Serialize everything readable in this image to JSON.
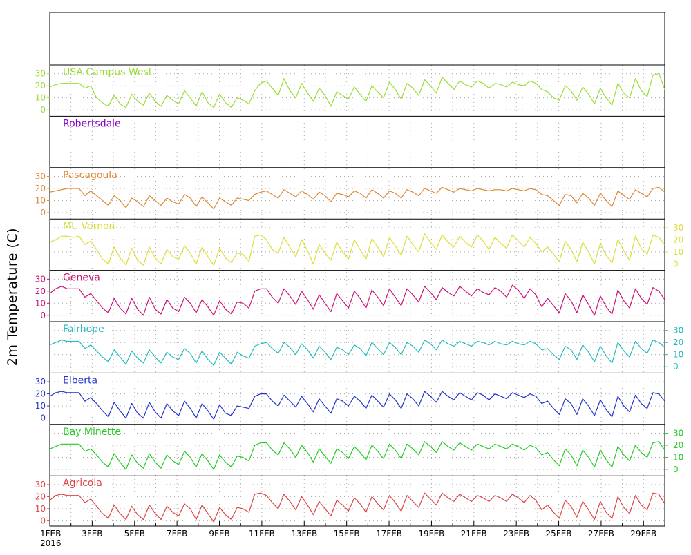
{
  "chart_data": {
    "type": "line",
    "ylabel": "2m Temperature (C)",
    "xaxis": {
      "start": "2016-02-01",
      "end": "2016-02-29",
      "year_label": "2016",
      "ticks": [
        "1FEB",
        "3FEB",
        "5FEB",
        "7FEB",
        "9FEB",
        "11FEB",
        "13FEB",
        "15FEB",
        "17FEB",
        "19FEB",
        "21FEB",
        "23FEB",
        "25FEB",
        "27FEB",
        "29FEB"
      ]
    },
    "ylim": [
      -3,
      35
    ],
    "yticks": [
      0,
      10,
      20,
      30
    ],
    "grid": true,
    "panels": [
      {
        "name": "USA Campus West",
        "color": "#99dd33",
        "axis_side": "left",
        "values": [
          19,
          21,
          22,
          22,
          22,
          22,
          18,
          20,
          10,
          6,
          3,
          12,
          5,
          2,
          13,
          7,
          4,
          14,
          7,
          3,
          12,
          8,
          5,
          16,
          10,
          3,
          15,
          6,
          2,
          13,
          6,
          2,
          10,
          8,
          5,
          16,
          22,
          24,
          18,
          12,
          26,
          16,
          10,
          22,
          14,
          7,
          18,
          12,
          3,
          15,
          12,
          9,
          19,
          13,
          7,
          20,
          15,
          10,
          23,
          17,
          9,
          22,
          18,
          12,
          25,
          20,
          14,
          27,
          22,
          17,
          24,
          21,
          19,
          24,
          22,
          18,
          22,
          21,
          19,
          23,
          21,
          20,
          24,
          22,
          17,
          15,
          10,
          8,
          20,
          16,
          8,
          19,
          13,
          5,
          18,
          10,
          4,
          22,
          14,
          10,
          26,
          16,
          11,
          29,
          30,
          17
        ]
      },
      {
        "name": "Robertsdale",
        "color": "#8800cc",
        "axis_side": "left",
        "values": []
      },
      {
        "name": "Pascagoula",
        "color": "#dd8833",
        "axis_side": "left",
        "values": [
          17,
          18,
          19,
          20,
          20,
          20,
          14,
          18,
          14,
          10,
          6,
          14,
          10,
          4,
          12,
          9,
          5,
          14,
          10,
          6,
          12,
          9,
          7,
          15,
          12,
          5,
          13,
          8,
          3,
          12,
          9,
          6,
          12,
          11,
          10,
          15,
          17,
          18,
          15,
          12,
          19,
          16,
          13,
          18,
          15,
          11,
          17,
          14,
          9,
          16,
          15,
          13,
          18,
          16,
          12,
          19,
          16,
          12,
          18,
          16,
          12,
          19,
          17,
          14,
          20,
          18,
          16,
          21,
          19,
          17,
          20,
          19,
          18,
          20,
          19,
          18,
          19,
          19,
          18,
          20,
          19,
          18,
          20,
          19,
          15,
          14,
          10,
          6,
          15,
          14,
          8,
          16,
          12,
          6,
          16,
          10,
          5,
          18,
          14,
          11,
          19,
          16,
          13,
          20,
          21,
          17
        ]
      },
      {
        "name": "Mt. Vernon",
        "color": "#dddd33",
        "axis_side": "right",
        "values": [
          18,
          20,
          23,
          23,
          22,
          23,
          16,
          19,
          12,
          4,
          0,
          14,
          5,
          -1,
          13,
          3,
          -1,
          14,
          5,
          0,
          12,
          6,
          4,
          15,
          9,
          0,
          14,
          6,
          -1,
          13,
          5,
          1,
          9,
          8,
          2,
          23,
          24,
          20,
          12,
          9,
          22,
          14,
          6,
          20,
          11,
          0,
          16,
          9,
          3,
          18,
          10,
          4,
          20,
          12,
          4,
          21,
          14,
          6,
          22,
          15,
          7,
          23,
          16,
          10,
          25,
          18,
          12,
          24,
          18,
          14,
          23,
          18,
          14,
          24,
          19,
          12,
          22,
          17,
          13,
          24,
          19,
          14,
          22,
          17,
          10,
          14,
          8,
          2,
          19,
          12,
          2,
          18,
          10,
          0,
          17,
          7,
          1,
          20,
          11,
          3,
          23,
          13,
          8,
          24,
          22,
          16
        ]
      },
      {
        "name": "Geneva",
        "color": "#cc1177",
        "axis_side": "left",
        "values": [
          18,
          22,
          24,
          22,
          22,
          22,
          15,
          18,
          12,
          6,
          2,
          14,
          6,
          1,
          14,
          5,
          0,
          15,
          5,
          1,
          13,
          6,
          3,
          15,
          10,
          2,
          13,
          7,
          0,
          12,
          5,
          1,
          11,
          10,
          6,
          20,
          22,
          22,
          15,
          10,
          22,
          16,
          9,
          20,
          13,
          5,
          17,
          10,
          3,
          18,
          12,
          6,
          20,
          14,
          6,
          21,
          15,
          8,
          22,
          15,
          8,
          22,
          17,
          11,
          24,
          19,
          13,
          23,
          19,
          16,
          24,
          20,
          16,
          22,
          19,
          17,
          23,
          20,
          15,
          25,
          21,
          14,
          22,
          17,
          7,
          14,
          8,
          2,
          18,
          12,
          2,
          17,
          9,
          0,
          16,
          7,
          1,
          21,
          12,
          6,
          22,
          14,
          9,
          23,
          20,
          13
        ]
      },
      {
        "name": "Fairhope",
        "color": "#22bbbb",
        "axis_side": "right",
        "values": [
          18,
          20,
          22,
          21,
          21,
          21,
          15,
          18,
          13,
          8,
          4,
          14,
          8,
          2,
          13,
          7,
          3,
          14,
          8,
          3,
          12,
          8,
          6,
          15,
          11,
          3,
          13,
          6,
          1,
          12,
          7,
          2,
          12,
          9,
          7,
          17,
          19,
          20,
          15,
          11,
          20,
          16,
          10,
          19,
          14,
          7,
          17,
          12,
          6,
          16,
          14,
          10,
          18,
          15,
          9,
          20,
          15,
          10,
          20,
          16,
          10,
          20,
          17,
          12,
          22,
          19,
          14,
          22,
          19,
          17,
          21,
          19,
          17,
          21,
          20,
          18,
          21,
          19,
          18,
          21,
          19,
          18,
          21,
          19,
          14,
          15,
          10,
          6,
          17,
          14,
          6,
          18,
          12,
          4,
          17,
          9,
          3,
          20,
          13,
          8,
          21,
          15,
          11,
          22,
          20,
          16
        ]
      },
      {
        "name": "Elberta",
        "color": "#2233cc",
        "axis_side": "left",
        "values": [
          18,
          21,
          22,
          21,
          21,
          21,
          14,
          17,
          12,
          6,
          1,
          13,
          6,
          0,
          12,
          4,
          0,
          13,
          5,
          0,
          12,
          6,
          2,
          14,
          8,
          0,
          12,
          6,
          -1,
          11,
          4,
          2,
          10,
          9,
          8,
          18,
          20,
          20,
          14,
          10,
          19,
          14,
          9,
          18,
          12,
          5,
          16,
          10,
          4,
          16,
          14,
          10,
          18,
          14,
          8,
          19,
          14,
          9,
          20,
          15,
          8,
          20,
          16,
          10,
          22,
          18,
          13,
          22,
          18,
          15,
          21,
          18,
          15,
          21,
          19,
          15,
          20,
          18,
          16,
          21,
          19,
          17,
          20,
          18,
          12,
          14,
          8,
          3,
          16,
          12,
          3,
          16,
          10,
          2,
          15,
          7,
          1,
          18,
          10,
          5,
          19,
          12,
          8,
          21,
          20,
          14
        ]
      },
      {
        "name": "Bay Minette",
        "color": "#22cc22",
        "axis_side": "right",
        "values": [
          17,
          19,
          21,
          21,
          21,
          21,
          15,
          17,
          12,
          6,
          2,
          13,
          6,
          0,
          12,
          5,
          1,
          13,
          6,
          1,
          12,
          7,
          4,
          15,
          10,
          2,
          13,
          7,
          0,
          12,
          6,
          2,
          11,
          10,
          7,
          20,
          22,
          22,
          16,
          12,
          22,
          17,
          10,
          20,
          14,
          6,
          17,
          11,
          5,
          17,
          14,
          9,
          19,
          14,
          8,
          20,
          15,
          9,
          21,
          16,
          9,
          21,
          17,
          12,
          23,
          19,
          14,
          23,
          19,
          16,
          22,
          19,
          16,
          21,
          19,
          17,
          21,
          19,
          17,
          21,
          19,
          16,
          20,
          18,
          12,
          14,
          8,
          3,
          17,
          12,
          3,
          16,
          10,
          2,
          16,
          8,
          2,
          19,
          12,
          7,
          20,
          14,
          10,
          22,
          23,
          16
        ]
      },
      {
        "name": "Agricola",
        "color": "#dd4444",
        "axis_side": "left",
        "values": [
          17,
          21,
          22,
          21,
          21,
          21,
          15,
          18,
          12,
          6,
          2,
          13,
          6,
          1,
          12,
          5,
          1,
          13,
          6,
          1,
          12,
          7,
          4,
          14,
          10,
          1,
          13,
          6,
          -1,
          11,
          5,
          1,
          11,
          10,
          7,
          22,
          23,
          21,
          15,
          10,
          22,
          16,
          9,
          20,
          13,
          5,
          16,
          10,
          4,
          17,
          13,
          8,
          19,
          14,
          7,
          20,
          14,
          9,
          21,
          15,
          8,
          21,
          16,
          11,
          23,
          18,
          13,
          23,
          19,
          16,
          22,
          19,
          16,
          21,
          19,
          16,
          21,
          19,
          16,
          22,
          19,
          15,
          21,
          17,
          9,
          13,
          7,
          2,
          17,
          12,
          3,
          16,
          9,
          1,
          16,
          7,
          2,
          20,
          11,
          6,
          21,
          13,
          9,
          23,
          22,
          14
        ]
      }
    ]
  }
}
